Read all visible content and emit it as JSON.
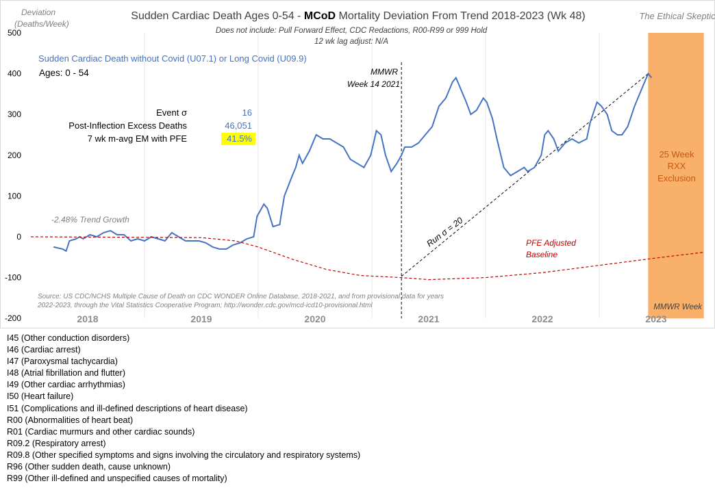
{
  "chart_data": {
    "type": "line",
    "title_prefix": "Sudden Cardiac Death Ages 0-54 - ",
    "title_bold": "MCoD",
    "title_suffix": " Mortality Deviation From Trend  2018-2023 (Wk 48)",
    "subtitle1": "Does not include: Pull Forward Effect,  CDC Redactions, R00-R99 or 999 Hold",
    "subtitle2": "12 wk lag adjust: N/A",
    "watermark": "The Ethical Skeptic",
    "ylabel1": "Deviation",
    "ylabel2": "(Deaths/Week)",
    "xlabel": "MMWR Week",
    "ylim": [
      -200,
      500
    ],
    "xlim": [
      2018.0,
      2023.95
    ],
    "yticks": [
      500,
      400,
      300,
      200,
      100,
      0,
      -100,
      -200
    ],
    "xticks": [
      "2018",
      "2019",
      "2020",
      "2021",
      "2022",
      "2023"
    ],
    "series_label": "Sudden Cardiac Death without Covid (U07.1) or Long Covid (U09.9)",
    "ages_label": "Ages: 0 - 54",
    "stats": [
      {
        "label": "Event σ",
        "value": "16"
      },
      {
        "label": "Post-Inflection Excess Deaths",
        "value": "46,051"
      },
      {
        "label": "7 wk m-avg EM with PFE",
        "value": "41.5%",
        "highlight": true
      }
    ],
    "annotations": {
      "mmwr1": "MMWR",
      "mmwr2": "Week 14 2021",
      "trend": "-2.48% Trend Growth",
      "run": "Run σ = 20",
      "pfe1": "PFE Adjusted",
      "pfe2": "Baseline",
      "rxx1": "25 Week",
      "rxx2": "RXX",
      "rxx3": "Exclusion",
      "source1": "Source: US CDC/NCHS Multiple Cause of Death on CDC WONDER Online Database, 2018-2021, and from provisional data for years",
      "source2": "2022-2023, through the Vital Statistics Cooperative Program; http://wonder.cdc.gov/mcd-icd10-provisional.html"
    },
    "inflection_x": 2021.26,
    "exclusion_range": [
      2023.43,
      2023.92
    ],
    "run_line": [
      [
        2021.26,
        -97
      ],
      [
        2023.43,
        400
      ]
    ],
    "series": [
      {
        "name": "Sudden Cardiac Death deviation",
        "color": "#4472C4",
        "points": [
          [
            2018.2,
            -25
          ],
          [
            2018.28,
            -30
          ],
          [
            2018.31,
            -35
          ],
          [
            2018.34,
            -10
          ],
          [
            2018.4,
            -5
          ],
          [
            2018.43,
            0
          ],
          [
            2018.46,
            -5
          ],
          [
            2018.52,
            5
          ],
          [
            2018.58,
            0
          ],
          [
            2018.64,
            10
          ],
          [
            2018.7,
            15
          ],
          [
            2018.76,
            5
          ],
          [
            2018.82,
            5
          ],
          [
            2018.88,
            -10
          ],
          [
            2018.94,
            -5
          ],
          [
            2019.0,
            -10
          ],
          [
            2019.06,
            0
          ],
          [
            2019.12,
            -5
          ],
          [
            2019.18,
            -10
          ],
          [
            2019.24,
            10
          ],
          [
            2019.3,
            0
          ],
          [
            2019.36,
            -10
          ],
          [
            2019.42,
            -10
          ],
          [
            2019.48,
            -10
          ],
          [
            2019.54,
            -15
          ],
          [
            2019.6,
            -25
          ],
          [
            2019.66,
            -30
          ],
          [
            2019.72,
            -30
          ],
          [
            2019.78,
            -20
          ],
          [
            2019.84,
            -15
          ],
          [
            2019.9,
            -5
          ],
          [
            2019.96,
            0
          ],
          [
            2019.99,
            50
          ],
          [
            2020.05,
            80
          ],
          [
            2020.08,
            70
          ],
          [
            2020.13,
            25
          ],
          [
            2020.19,
            30
          ],
          [
            2020.2,
            50
          ],
          [
            2020.23,
            100
          ],
          [
            2020.3,
            150
          ],
          [
            2020.33,
            170
          ],
          [
            2020.36,
            200
          ],
          [
            2020.39,
            180
          ],
          [
            2020.45,
            210
          ],
          [
            2020.51,
            250
          ],
          [
            2020.57,
            240
          ],
          [
            2020.63,
            240
          ],
          [
            2020.69,
            230
          ],
          [
            2020.75,
            220
          ],
          [
            2020.81,
            190
          ],
          [
            2020.87,
            180
          ],
          [
            2020.93,
            170
          ],
          [
            2020.99,
            200
          ],
          [
            2021.04,
            260
          ],
          [
            2021.08,
            250
          ],
          [
            2021.12,
            200
          ],
          [
            2021.17,
            160
          ],
          [
            2021.22,
            180
          ],
          [
            2021.26,
            200
          ],
          [
            2021.29,
            220
          ],
          [
            2021.35,
            220
          ],
          [
            2021.41,
            230
          ],
          [
            2021.47,
            250
          ],
          [
            2021.53,
            270
          ],
          [
            2021.59,
            320
          ],
          [
            2021.65,
            340
          ],
          [
            2021.71,
            380
          ],
          [
            2021.74,
            390
          ],
          [
            2021.77,
            370
          ],
          [
            2021.83,
            330
          ],
          [
            2021.87,
            300
          ],
          [
            2021.92,
            310
          ],
          [
            2021.98,
            340
          ],
          [
            2022.01,
            330
          ],
          [
            2022.06,
            290
          ],
          [
            2022.1,
            240
          ],
          [
            2022.16,
            170
          ],
          [
            2022.22,
            150
          ],
          [
            2022.28,
            160
          ],
          [
            2022.34,
            170
          ],
          [
            2022.37,
            160
          ],
          [
            2022.43,
            170
          ],
          [
            2022.49,
            200
          ],
          [
            2022.52,
            250
          ],
          [
            2022.55,
            260
          ],
          [
            2022.6,
            240
          ],
          [
            2022.64,
            210
          ],
          [
            2022.7,
            230
          ],
          [
            2022.76,
            240
          ],
          [
            2022.82,
            230
          ],
          [
            2022.89,
            240
          ],
          [
            2022.92,
            280
          ],
          [
            2022.98,
            330
          ],
          [
            2023.02,
            320
          ],
          [
            2023.07,
            300
          ],
          [
            2023.11,
            260
          ],
          [
            2023.16,
            250
          ],
          [
            2023.2,
            250
          ],
          [
            2023.25,
            270
          ],
          [
            2023.31,
            320
          ],
          [
            2023.37,
            360
          ],
          [
            2023.43,
            400
          ],
          [
            2023.46,
            390
          ]
        ]
      },
      {
        "name": "PFE Adjusted Baseline",
        "color": "#C00000",
        "points": [
          [
            2018.0,
            0
          ],
          [
            2019.5,
            -2
          ],
          [
            2019.8,
            -10
          ],
          [
            2020.0,
            -25
          ],
          [
            2020.3,
            -55
          ],
          [
            2020.6,
            -80
          ],
          [
            2020.9,
            -95
          ],
          [
            2021.26,
            -100
          ],
          [
            2021.5,
            -105
          ],
          [
            2022.0,
            -100
          ],
          [
            2022.5,
            -88
          ],
          [
            2023.0,
            -70
          ],
          [
            2023.5,
            -52
          ],
          [
            2023.92,
            -38
          ]
        ]
      }
    ]
  },
  "codes": [
    "I45 (Other conduction  disorders)",
    "I46 (Cardiac arrest)",
    "I47 (Paroxysmal tachycardia)",
    "I48 (Atrial fibrillation and flutter)",
    "I49 (Other cardiac arrhythmias)",
    "I50 (Heart failure)",
    "I51 (Complications  and ill-defined  descriptions of heart disease)",
    "R00 (Abnormalities of heart beat)",
    "R01 (Cardiac murmurs and other cardiac sounds)",
    "R09.2 (Respiratory arrest)",
    "R09.8 (Other specified  symptoms and signs involving the circulatory and respiratory systems)",
    "R96 (Other sudden death, cause unknown)",
    "R99 (Other ill-defined  and unspecified causes of mortality)"
  ],
  "colors": {
    "line": "#4472C4",
    "baseline": "#C00000",
    "exclusion": "#F8B06A",
    "exclusion_text": "#C55A11",
    "highlight": "#FFFF00",
    "blue_text": "#4472C4",
    "year": "#8c8c8c"
  }
}
